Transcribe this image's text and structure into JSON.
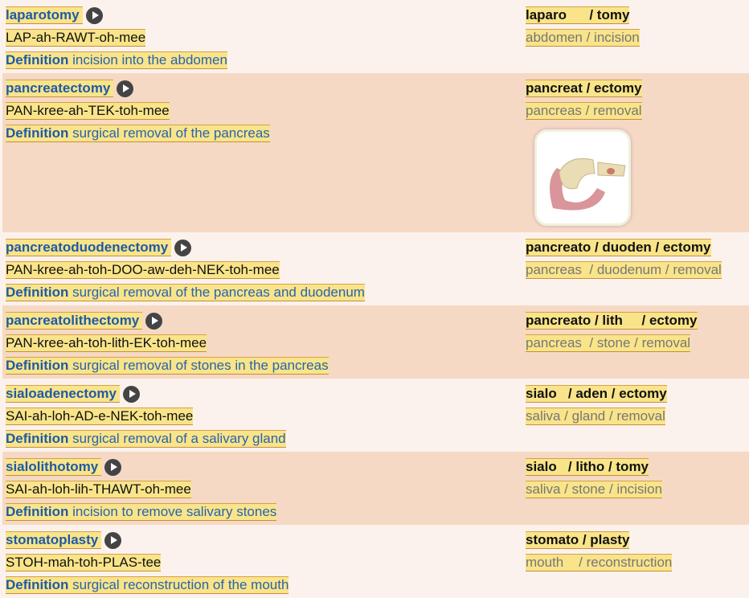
{
  "definition_label": "Definition",
  "colors": {
    "highlight": "#f9e48a",
    "term": "#1f5aa6",
    "row_alt": "#f5d9c4"
  },
  "terms": [
    {
      "term": "laparotomy",
      "pron": "LAP-ah-RAWT-oh-mee",
      "def": "incision into the abdomen",
      "parts": "laparo      / tomy",
      "meaning": "abdomen / incision"
    },
    {
      "term": "pancreatectomy",
      "pron": "PAN-kree-ah-TEK-toh-mee",
      "def": "surgical removal of the pancreas",
      "parts": "pancreat / ectomy",
      "meaning": "pancreas / removal",
      "image": "pancreas-illustration"
    },
    {
      "term": "pancreatoduodenectomy",
      "pron": "PAN-kree-ah-toh-DOO-aw-deh-NEK-toh-mee",
      "def": "surgical removal of the pancreas and duodenum",
      "parts": "pancreato / duoden / ectomy",
      "meaning": "pancreas  / duodenum / removal"
    },
    {
      "term": "pancreatolithectomy",
      "pron": "PAN-kree-ah-toh-lith-EK-toh-mee",
      "def": "surgical removal of stones in the pancreas",
      "parts": "pancreato / lith     / ectomy",
      "meaning": "pancreas  / stone / removal"
    },
    {
      "term": "sialoadenectomy",
      "pron": "SAI-ah-loh-AD-e-NEK-toh-mee",
      "def": "surgical removal of a salivary gland",
      "parts": "sialo   / aden / ectomy",
      "meaning": "saliva / gland / removal"
    },
    {
      "term": "sialolithotomy",
      "pron": "SAI-ah-loh-lih-THAWT-oh-mee",
      "def": "incision to remove salivary stones",
      "parts": "sialo   / litho / tomy",
      "meaning": "saliva / stone / incision"
    },
    {
      "term": "stomatoplasty",
      "pron": "STOH-mah-toh-PLAS-tee",
      "def": "surgical reconstruction of the mouth",
      "parts": "stomato / plasty",
      "meaning": "mouth    / reconstruction"
    }
  ]
}
